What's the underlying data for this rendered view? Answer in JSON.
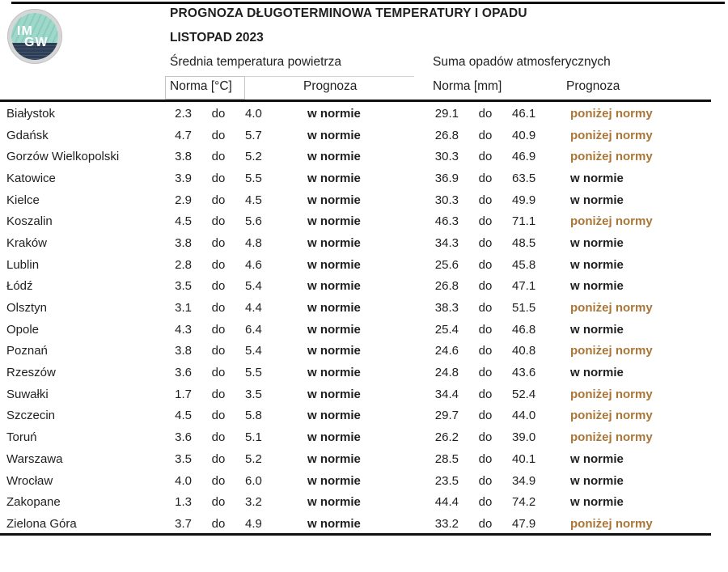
{
  "header": {
    "title": "PROGNOZA DŁUGOTERMINOWA TEMPERATURY I OPADU",
    "subtitle": "LISTOPAD 2023",
    "logo_text_top": "IM",
    "logo_text_bottom": "GW",
    "temp_group": "Średnia temperatura powietrza",
    "precip_group": "Suma opadów atmosferycznych",
    "temp_norm_label": "Norma [°C]",
    "temp_forecast_label": "Prognoza",
    "precip_norm_label": "Norma [mm]",
    "precip_forecast_label": "Prognoza"
  },
  "colors": {
    "text": "#1f1f1f",
    "below_norm": "#aa7638",
    "rule_line": "#101010",
    "logo_green": "#94d1c4",
    "logo_navy": "#2c3d54"
  },
  "table": {
    "range_separator": "do",
    "in_norm_text": "w normie",
    "below_norm_text": "poniżej normy",
    "rows": [
      {
        "city": "Białystok",
        "temp_low": "2.3",
        "temp_high": "4.0",
        "temp_forecast": "w normie",
        "precip_low": "29.1",
        "precip_high": "46.1",
        "precip_forecast": "poniżej normy"
      },
      {
        "city": "Gdańsk",
        "temp_low": "4.7",
        "temp_high": "5.7",
        "temp_forecast": "w normie",
        "precip_low": "26.8",
        "precip_high": "40.9",
        "precip_forecast": "poniżej normy"
      },
      {
        "city": "Gorzów Wielkopolski",
        "temp_low": "3.8",
        "temp_high": "5.2",
        "temp_forecast": "w normie",
        "precip_low": "30.3",
        "precip_high": "46.9",
        "precip_forecast": "poniżej normy"
      },
      {
        "city": "Katowice",
        "temp_low": "3.9",
        "temp_high": "5.5",
        "temp_forecast": "w normie",
        "precip_low": "36.9",
        "precip_high": "63.5",
        "precip_forecast": "w normie"
      },
      {
        "city": "Kielce",
        "temp_low": "2.9",
        "temp_high": "4.5",
        "temp_forecast": "w normie",
        "precip_low": "30.3",
        "precip_high": "49.9",
        "precip_forecast": "w normie"
      },
      {
        "city": "Koszalin",
        "temp_low": "4.5",
        "temp_high": "5.6",
        "temp_forecast": "w normie",
        "precip_low": "46.3",
        "precip_high": "71.1",
        "precip_forecast": "poniżej normy"
      },
      {
        "city": "Kraków",
        "temp_low": "3.8",
        "temp_high": "4.8",
        "temp_forecast": "w normie",
        "precip_low": "34.3",
        "precip_high": "48.5",
        "precip_forecast": "w normie"
      },
      {
        "city": "Lublin",
        "temp_low": "2.8",
        "temp_high": "4.6",
        "temp_forecast": "w normie",
        "precip_low": "25.6",
        "precip_high": "45.8",
        "precip_forecast": "w normie"
      },
      {
        "city": "Łódź",
        "temp_low": "3.5",
        "temp_high": "5.4",
        "temp_forecast": "w normie",
        "precip_low": "26.8",
        "precip_high": "47.1",
        "precip_forecast": "w normie"
      },
      {
        "city": "Olsztyn",
        "temp_low": "3.1",
        "temp_high": "4.4",
        "temp_forecast": "w normie",
        "precip_low": "38.3",
        "precip_high": "51.5",
        "precip_forecast": "poniżej normy"
      },
      {
        "city": "Opole",
        "temp_low": "4.3",
        "temp_high": "6.4",
        "temp_forecast": "w normie",
        "precip_low": "25.4",
        "precip_high": "46.8",
        "precip_forecast": "w normie"
      },
      {
        "city": "Poznań",
        "temp_low": "3.8",
        "temp_high": "5.4",
        "temp_forecast": "w normie",
        "precip_low": "24.6",
        "precip_high": "40.8",
        "precip_forecast": "poniżej normy"
      },
      {
        "city": "Rzeszów",
        "temp_low": "3.6",
        "temp_high": "5.5",
        "temp_forecast": "w normie",
        "precip_low": "24.8",
        "precip_high": "43.6",
        "precip_forecast": "w normie"
      },
      {
        "city": "Suwałki",
        "temp_low": "1.7",
        "temp_high": "3.5",
        "temp_forecast": "w normie",
        "precip_low": "34.4",
        "precip_high": "52.4",
        "precip_forecast": "poniżej normy"
      },
      {
        "city": "Szczecin",
        "temp_low": "4.5",
        "temp_high": "5.8",
        "temp_forecast": "w normie",
        "precip_low": "29.7",
        "precip_high": "44.0",
        "precip_forecast": "poniżej normy"
      },
      {
        "city": "Toruń",
        "temp_low": "3.6",
        "temp_high": "5.1",
        "temp_forecast": "w normie",
        "precip_low": "26.2",
        "precip_high": "39.0",
        "precip_forecast": "poniżej normy"
      },
      {
        "city": "Warszawa",
        "temp_low": "3.5",
        "temp_high": "5.2",
        "temp_forecast": "w normie",
        "precip_low": "28.5",
        "precip_high": "40.1",
        "precip_forecast": "w normie"
      },
      {
        "city": "Wrocław",
        "temp_low": "4.0",
        "temp_high": "6.0",
        "temp_forecast": "w normie",
        "precip_low": "23.5",
        "precip_high": "34.9",
        "precip_forecast": "w normie"
      },
      {
        "city": "Zakopane",
        "temp_low": "1.3",
        "temp_high": "3.2",
        "temp_forecast": "w normie",
        "precip_low": "44.4",
        "precip_high": "74.2",
        "precip_forecast": "w normie"
      },
      {
        "city": "Zielona Góra",
        "temp_low": "3.7",
        "temp_high": "4.9",
        "temp_forecast": "w normie",
        "precip_low": "33.2",
        "precip_high": "47.9",
        "precip_forecast": "poniżej normy"
      }
    ]
  },
  "chart_data": {
    "type": "table",
    "title": "PROGNOZA DŁUGOTERMINOWA TEMPERATURY I OPADU",
    "subtitle": "LISTOPAD 2023",
    "column_groups": [
      "Średnia temperatura powietrza",
      "Suma opadów atmosferycznych"
    ],
    "columns": [
      "Norma [°C] min",
      "Norma [°C] max",
      "Prognoza temperatury",
      "Norma [mm] min",
      "Norma [mm] max",
      "Prognoza opadów"
    ],
    "rows": [
      [
        "Białystok",
        2.3,
        4.0,
        "w normie",
        29.1,
        46.1,
        "poniżej normy"
      ],
      [
        "Gdańsk",
        4.7,
        5.7,
        "w normie",
        26.8,
        40.9,
        "poniżej normy"
      ],
      [
        "Gorzów Wielkopolski",
        3.8,
        5.2,
        "w normie",
        30.3,
        46.9,
        "poniżej normy"
      ],
      [
        "Katowice",
        3.9,
        5.5,
        "w normie",
        36.9,
        63.5,
        "w normie"
      ],
      [
        "Kielce",
        2.9,
        4.5,
        "w normie",
        30.3,
        49.9,
        "w normie"
      ],
      [
        "Koszalin",
        4.5,
        5.6,
        "w normie",
        46.3,
        71.1,
        "poniżej normy"
      ],
      [
        "Kraków",
        3.8,
        4.8,
        "w normie",
        34.3,
        48.5,
        "w normie"
      ],
      [
        "Lublin",
        2.8,
        4.6,
        "w normie",
        25.6,
        45.8,
        "w normie"
      ],
      [
        "Łódź",
        3.5,
        5.4,
        "w normie",
        26.8,
        47.1,
        "w normie"
      ],
      [
        "Olsztyn",
        3.1,
        4.4,
        "w normie",
        38.3,
        51.5,
        "poniżej normy"
      ],
      [
        "Opole",
        4.3,
        6.4,
        "w normie",
        25.4,
        46.8,
        "w normie"
      ],
      [
        "Poznań",
        3.8,
        5.4,
        "w normie",
        24.6,
        40.8,
        "poniżej normy"
      ],
      [
        "Rzeszów",
        3.6,
        5.5,
        "w normie",
        24.8,
        43.6,
        "w normie"
      ],
      [
        "Suwałki",
        1.7,
        3.5,
        "w normie",
        34.4,
        52.4,
        "poniżej normy"
      ],
      [
        "Szczecin",
        4.5,
        5.8,
        "w normie",
        29.7,
        44.0,
        "poniżej normy"
      ],
      [
        "Toruń",
        3.6,
        5.1,
        "w normie",
        26.2,
        39.0,
        "poniżej normy"
      ],
      [
        "Warszawa",
        3.5,
        5.2,
        "w normie",
        28.5,
        40.1,
        "w normie"
      ],
      [
        "Wrocław",
        4.0,
        6.0,
        "w normie",
        23.5,
        34.9,
        "w normie"
      ],
      [
        "Zakopane",
        1.3,
        3.2,
        "w normie",
        44.4,
        74.2,
        "w normie"
      ],
      [
        "Zielona Góra",
        3.7,
        4.9,
        "w normie",
        33.2,
        47.9,
        "poniżej normy"
      ]
    ]
  }
}
